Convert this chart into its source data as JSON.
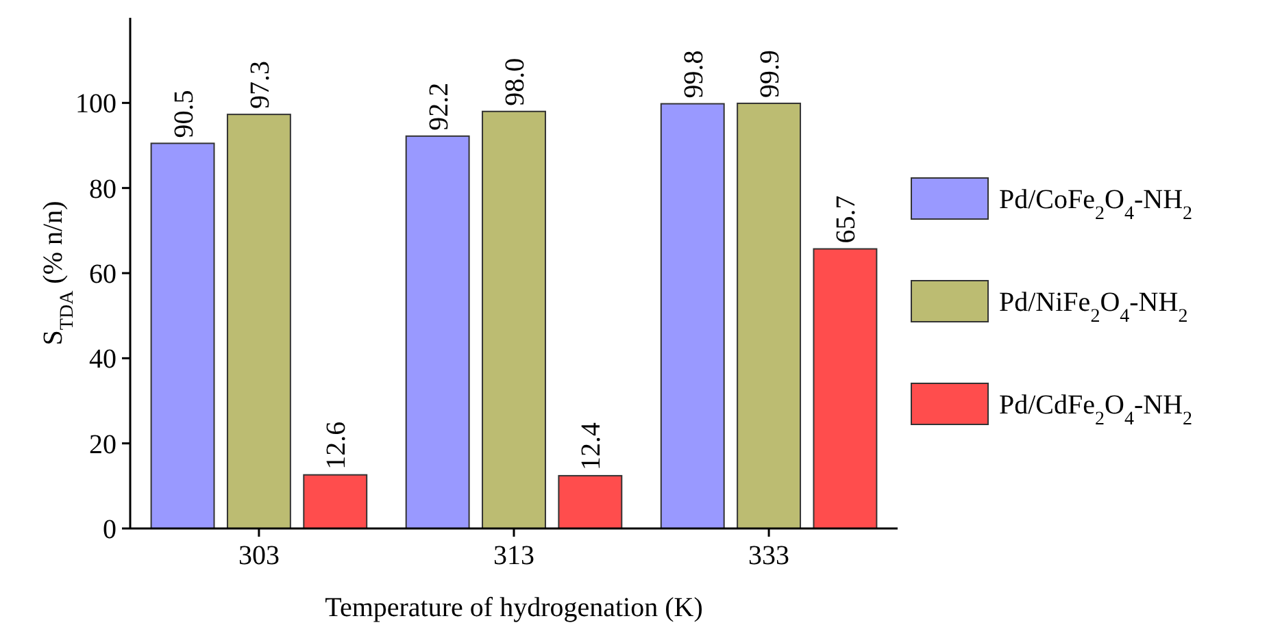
{
  "chart_data": {
    "type": "bar",
    "xlabel": "Temperature of hydrogenation (K)",
    "ylabel": "S$_{TDA}$ (% n/n)",
    "categories": [
      "303",
      "313",
      "333"
    ],
    "series": [
      {
        "name": "Pd/CoFe$_{2}$O$_{4}$-NH$_{2}$",
        "color": "#9999ff",
        "values": [
          90.5,
          92.2,
          99.8
        ]
      },
      {
        "name": "Pd/NiFe$_{2}$O$_{4}$-NH$_{2}$",
        "color": "#bcbc72",
        "values": [
          97.3,
          98.0,
          99.9
        ]
      },
      {
        "name": "Pd/CdFe$_{2}$O$_{4}$-NH$_{2}$",
        "color": "#ff4d4d",
        "values": [
          12.6,
          12.4,
          65.7
        ]
      }
    ],
    "value_labels": [
      [
        "90.5",
        "92.2",
        "99.8"
      ],
      [
        "97.3",
        "98.0",
        "99.9"
      ],
      [
        "12.6",
        "12.4",
        "65.7"
      ]
    ],
    "ylim": [
      0,
      120
    ],
    "yticks": [
      0,
      20,
      40,
      60,
      80,
      100
    ],
    "grid": false,
    "legend": "right"
  }
}
